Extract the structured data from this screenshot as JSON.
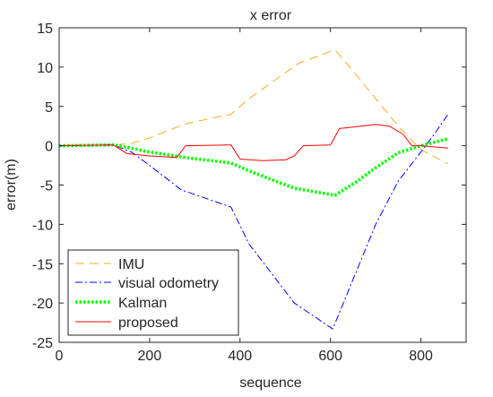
{
  "chart_data": {
    "type": "line",
    "title": "x error",
    "xlabel": "sequence",
    "ylabel": "error(m)",
    "xlim": [
      0,
      900
    ],
    "ylim": [
      -25,
      15
    ],
    "xticks": [
      0,
      200,
      400,
      600,
      800
    ],
    "yticks": [
      15,
      10,
      5,
      0,
      -5,
      -10,
      -15,
      -20,
      -25
    ],
    "grid": false,
    "legend_position": "bottom-left",
    "series": [
      {
        "name": "IMU",
        "color": "#EDB120",
        "style": "dashed",
        "x": [
          0,
          120,
          160,
          200,
          280,
          380,
          420,
          530,
          610,
          650,
          700,
          750,
          800,
          860
        ],
        "y": [
          0,
          0.1,
          0.3,
          1.0,
          2.8,
          4.0,
          6.0,
          10.5,
          12.2,
          9.5,
          6.0,
          2.5,
          -0.5,
          -2.3
        ]
      },
      {
        "name": "visual odometry",
        "color": "#0000FF",
        "style": "dashdot",
        "x": [
          0,
          120,
          160,
          200,
          270,
          380,
          420,
          520,
          605,
          650,
          700,
          750,
          800,
          830,
          860
        ],
        "y": [
          0,
          0.1,
          -0.8,
          -2.5,
          -5.6,
          -7.8,
          -12.5,
          -20.0,
          -23.3,
          -17.0,
          -10.0,
          -4.5,
          -0.8,
          1.5,
          4.0
        ]
      },
      {
        "name": "Kalman",
        "color": "#00FF00",
        "style": "dotted",
        "x": [
          0,
          120,
          150,
          200,
          280,
          380,
          420,
          520,
          610,
          660,
          700,
          750,
          800,
          860
        ],
        "y": [
          0,
          0.1,
          -0.2,
          -0.8,
          -1.5,
          -2.2,
          -3.2,
          -5.4,
          -6.3,
          -4.5,
          -2.8,
          -0.9,
          0.0,
          0.9
        ]
      },
      {
        "name": "proposed",
        "color": "#FF0000",
        "style": "solid",
        "x": [
          0,
          120,
          150,
          200,
          260,
          280,
          380,
          400,
          450,
          500,
          520,
          540,
          600,
          620,
          640,
          700,
          730,
          760,
          780,
          800,
          860
        ],
        "y": [
          0,
          0.1,
          -1.0,
          -1.3,
          -1.5,
          0.0,
          0.1,
          -1.7,
          -1.9,
          -1.8,
          -1.3,
          0.0,
          0.1,
          2.2,
          2.3,
          2.7,
          2.5,
          1.5,
          0.0,
          0.0,
          -0.3
        ]
      }
    ]
  }
}
